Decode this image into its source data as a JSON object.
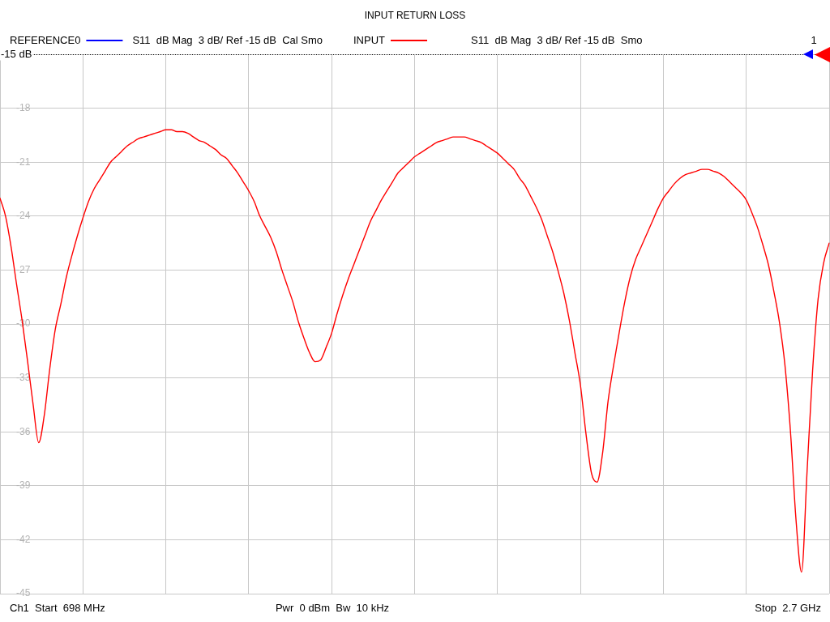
{
  "chart_data": {
    "type": "line",
    "title": "INPUT RETURN LOSS",
    "categories": [
      null,
      null,
      null,
      null,
      null,
      null,
      null,
      null,
      null,
      null,
      null,
      null,
      null,
      null,
      null,
      null,
      null,
      null,
      null,
      null,
      null,
      null,
      null,
      null,
      null,
      null,
      null,
      null,
      null,
      null,
      null,
      null,
      null,
      null,
      null,
      null,
      null,
      null,
      null,
      null,
      null,
      null,
      null,
      null,
      null,
      null,
      null,
      null,
      null,
      null,
      null,
      null,
      null,
      null,
      null,
      null,
      null,
      null,
      null,
      null,
      null,
      null,
      null,
      null,
      null,
      null,
      null,
      null,
      null,
      null,
      null,
      null,
      null,
      null,
      null,
      null,
      null,
      null,
      null,
      null,
      null,
      null,
      null,
      null,
      null,
      null,
      null,
      null,
      null,
      null,
      null,
      null,
      null,
      null,
      null,
      null,
      null,
      null,
      null,
      null,
      null,
      null,
      null,
      null,
      null,
      null,
      null,
      null,
      null,
      null,
      null,
      null,
      null,
      null,
      null,
      null,
      null,
      null,
      null,
      null,
      null,
      null,
      null,
      null,
      null,
      null,
      null,
      null,
      null,
      null,
      null,
      null,
      null,
      null,
      null,
      null,
      null,
      null,
      null,
      null,
      null,
      null,
      null,
      null,
      null,
      null,
      null,
      null,
      null,
      null,
      null
    ],
    "series": [
      {
        "name": "REFERENCE0",
        "color": "#0000ff",
        "values": [
          null,
          null,
          null,
          null,
          null,
          null,
          null,
          null,
          null,
          null,
          null,
          null,
          null,
          null,
          null,
          null,
          null,
          null,
          null,
          null,
          null,
          null,
          null,
          null,
          null,
          null,
          null,
          null,
          null,
          null,
          null,
          null,
          null,
          null,
          null,
          null,
          null,
          null,
          null,
          null,
          null,
          null,
          null,
          null,
          null,
          null,
          null,
          null,
          null,
          null,
          null,
          null,
          null,
          null,
          null,
          null,
          null,
          null,
          null,
          null,
          null,
          null,
          null,
          null,
          null,
          null,
          null,
          null,
          null,
          null,
          null,
          null,
          null,
          null,
          null,
          null,
          null,
          null,
          null,
          null,
          null,
          null,
          null,
          null,
          null,
          null,
          null,
          null,
          null,
          null,
          null,
          null,
          null,
          null,
          null,
          null,
          null,
          null,
          null,
          null,
          null,
          null,
          null,
          null,
          null,
          null,
          null,
          null,
          null,
          null,
          null,
          null,
          null,
          null,
          null,
          null,
          null,
          null,
          null,
          null,
          null,
          null,
          null,
          null,
          null,
          null,
          null,
          null,
          null,
          null,
          null,
          null,
          null,
          null,
          null,
          null,
          null,
          null,
          null,
          null,
          null,
          null,
          null,
          null,
          null,
          null,
          null,
          null,
          null,
          null,
          null
        ]
      },
      {
        "name": "INPUT",
        "color": "#ff0000",
        "values": [
          -23.0,
          -24.0,
          -25.7,
          -27.8,
          -29.8,
          -32.1,
          -34.5,
          -36.6,
          -35.1,
          -32.5,
          -30.3,
          -28.9,
          -27.4,
          -26.2,
          -25.1,
          -24.1,
          -23.2,
          -22.5,
          -22.0,
          -21.5,
          -21.0,
          -20.7,
          -20.4,
          -20.1,
          -19.9,
          -19.7,
          -19.6,
          -19.5,
          -19.4,
          -19.3,
          -19.2,
          -19.2,
          -19.3,
          -19.3,
          -19.4,
          -19.6,
          -19.8,
          -19.9,
          -20.1,
          -20.3,
          -20.6,
          -20.8,
          -21.2,
          -21.6,
          -22.1,
          -22.6,
          -23.2,
          -24.0,
          -24.6,
          -25.2,
          -26.0,
          -27.0,
          -27.9,
          -28.8,
          -29.9,
          -30.8,
          -31.6,
          -32.1,
          -32.0,
          -31.3,
          -30.5,
          -29.4,
          -28.4,
          -27.5,
          -26.7,
          -25.9,
          -25.1,
          -24.3,
          -23.7,
          -23.1,
          -22.6,
          -22.1,
          -21.6,
          -21.3,
          -21.0,
          -20.7,
          -20.5,
          -20.3,
          -20.1,
          -19.9,
          -19.8,
          -19.7,
          -19.6,
          -19.6,
          -19.6,
          -19.7,
          -19.8,
          -19.9,
          -20.1,
          -20.3,
          -20.5,
          -20.8,
          -21.1,
          -21.4,
          -21.9,
          -22.3,
          -22.9,
          -23.5,
          -24.2,
          -25.1,
          -26.0,
          -27.1,
          -28.3,
          -29.8,
          -31.6,
          -33.4,
          -36.1,
          -38.3,
          -38.8,
          -37.2,
          -34.3,
          -32.3,
          -30.5,
          -28.8,
          -27.4,
          -26.4,
          -25.7,
          -25.0,
          -24.3,
          -23.6,
          -23.0,
          -22.6,
          -22.2,
          -21.9,
          -21.7,
          -21.6,
          -21.5,
          -21.4,
          -21.4,
          -21.5,
          -21.6,
          -21.8,
          -22.1,
          -22.4,
          -22.7,
          -23.1,
          -23.8,
          -24.6,
          -25.6,
          -26.7,
          -28.2,
          -29.9,
          -32.3,
          -36.0,
          -40.9,
          -43.8,
          -38.2,
          -32.6,
          -28.6,
          -26.6,
          -25.5
        ]
      }
    ],
    "ylim": [
      -45,
      -15
    ],
    "yticks": [
      {
        "value": -15,
        "label": null
      },
      -18,
      -21,
      -24,
      -27,
      -30,
      -33,
      -36,
      -39,
      -42,
      -45
    ],
    "grid": true,
    "legend": "top",
    "ref_lines": [
      {
        "axis": "y",
        "value": -15,
        "label": "-15 dB",
        "color": "#000000",
        "line_style": "dotted"
      }
    ],
    "annotations": [
      "S11  dB Mag  3 dB/ Ref -15 dB  Cal Smo",
      "S11  dB Mag  3 dB/ Ref -15 dB  Smo",
      "1",
      "Ch1  Start  698 MHz",
      "Pwr  0 dBm  Bw  10 kHz",
      "Stop  2.7 GHz"
    ]
  }
}
